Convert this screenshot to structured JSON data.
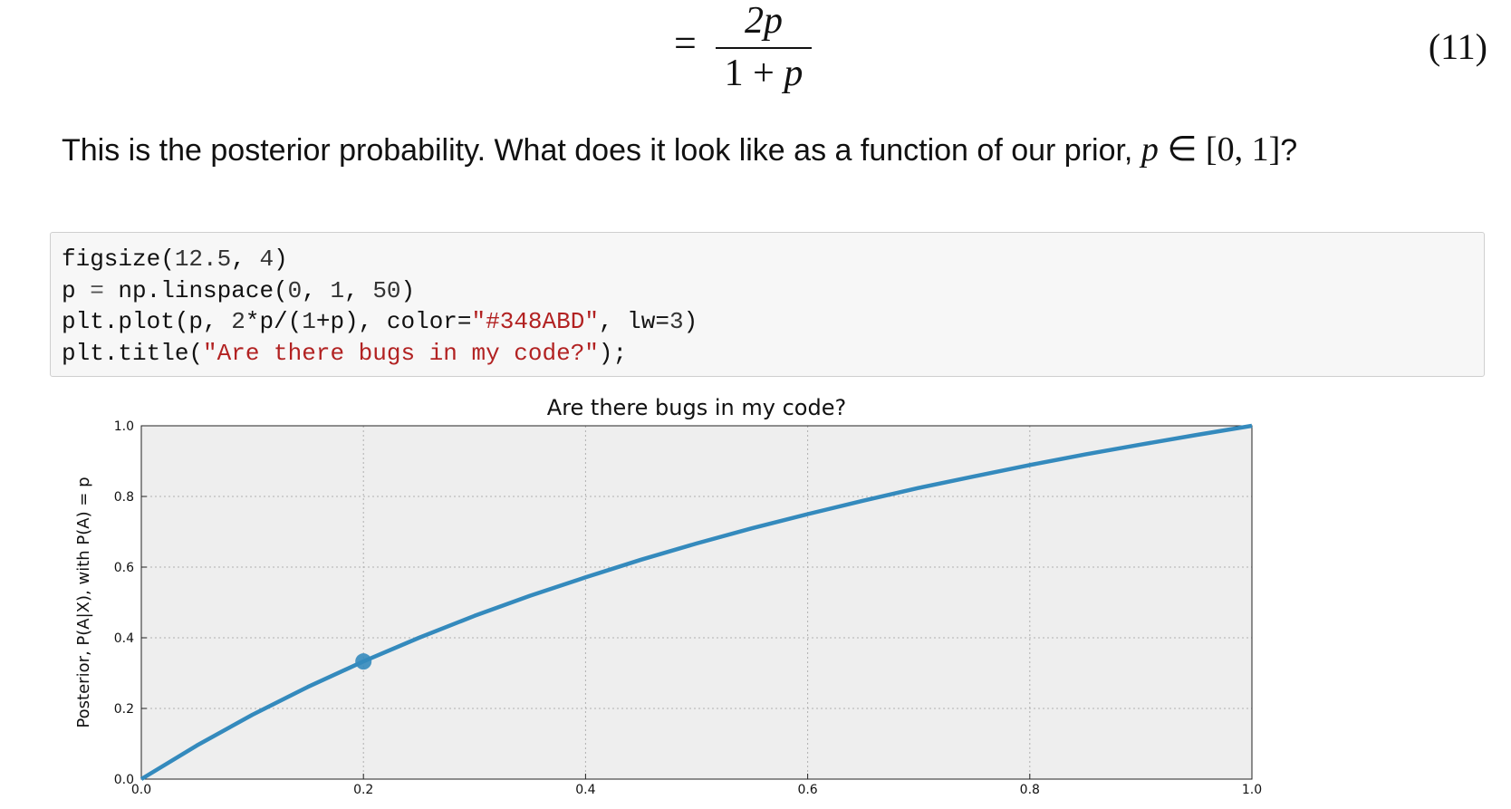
{
  "equation": {
    "equals": "=",
    "numerator": "2p",
    "denominator_prefix": "1 + ",
    "denominator_var": "p",
    "number": "(11)"
  },
  "paragraph": {
    "text": "This is the posterior probability. What does it look like as a function of our prior, ",
    "math_var": "p",
    "math_rest": " ∈ [0, 1]",
    "end": "?"
  },
  "code": {
    "lines": [
      [
        {
          "t": "figsize(",
          "c": ""
        },
        {
          "t": "12.5",
          "c": "num"
        },
        {
          "t": ", ",
          "c": ""
        },
        {
          "t": "4",
          "c": "num"
        },
        {
          "t": ")",
          "c": ""
        }
      ],
      [
        {
          "t": "p ",
          "c": ""
        },
        {
          "t": "=",
          "c": "op"
        },
        {
          "t": " np.linspace(",
          "c": ""
        },
        {
          "t": "0",
          "c": "num"
        },
        {
          "t": ", ",
          "c": ""
        },
        {
          "t": "1",
          "c": "num"
        },
        {
          "t": ", ",
          "c": ""
        },
        {
          "t": "50",
          "c": "num"
        },
        {
          "t": ")",
          "c": ""
        }
      ],
      [
        {
          "t": "plt.plot(p, ",
          "c": ""
        },
        {
          "t": "2",
          "c": "num"
        },
        {
          "t": "*p/(",
          "c": ""
        },
        {
          "t": "1",
          "c": "num"
        },
        {
          "t": "+p), color=",
          "c": ""
        },
        {
          "t": "\"#348ABD\"",
          "c": "str"
        },
        {
          "t": ", lw=",
          "c": ""
        },
        {
          "t": "3",
          "c": "num"
        },
        {
          "t": ")",
          "c": ""
        }
      ],
      [
        {
          "t": "plt.title(",
          "c": ""
        },
        {
          "t": "\"Are there bugs in my code?\"",
          "c": "str"
        },
        {
          "t": ");",
          "c": ""
        }
      ]
    ]
  },
  "chart_data": {
    "type": "line",
    "title": "Are there bugs in my code?",
    "ylabel": "Posterior, P(A|X), with P(A) = p",
    "xlim": [
      0,
      1
    ],
    "ylim": [
      0,
      1
    ],
    "xticks": [
      "0.0",
      "0.2",
      "0.4",
      "0.6",
      "0.8",
      "1.0"
    ],
    "yticks": [
      "0.0",
      "0.2",
      "0.4",
      "0.6",
      "0.8",
      "1.0"
    ],
    "grid": true,
    "series": [
      {
        "color": "#348ABD",
        "x": [
          0,
          0.05,
          0.1,
          0.15,
          0.2,
          0.25,
          0.3,
          0.35,
          0.4,
          0.45,
          0.5,
          0.55,
          0.6,
          0.65,
          0.7,
          0.75,
          0.8,
          0.85,
          0.9,
          0.95,
          1.0
        ],
        "y": [
          0,
          0.095,
          0.182,
          0.261,
          0.333,
          0.4,
          0.462,
          0.519,
          0.571,
          0.621,
          0.667,
          0.71,
          0.75,
          0.788,
          0.824,
          0.857,
          0.889,
          0.919,
          0.947,
          0.974,
          1.0
        ]
      }
    ],
    "markers": [
      {
        "x": 0.2,
        "y": 0.333,
        "color": "#348ABD"
      }
    ],
    "colors": {
      "axes_bg": "#eeeeee",
      "grid": "#b0b0b0"
    }
  }
}
